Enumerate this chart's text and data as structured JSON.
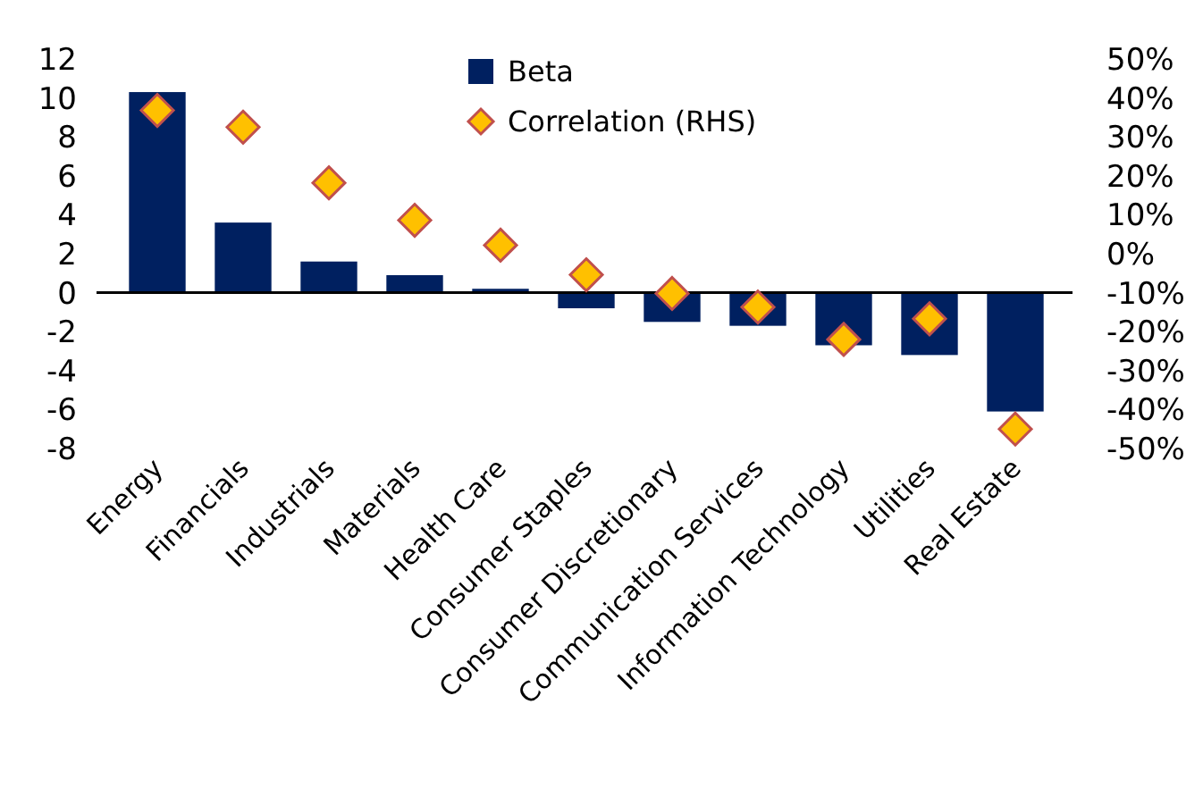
{
  "chart_data": {
    "type": "bar",
    "categories": [
      "Energy",
      "Financials",
      "Industrials",
      "Materials",
      "Health Care",
      "Consumer Staples",
      "Consumer Discretionary",
      "Communication Services",
      "Information Technology",
      "Utilities",
      "Real Estate"
    ],
    "series": [
      {
        "name": "Beta",
        "color": "#002060",
        "values": [
          10.3,
          3.6,
          1.6,
          0.9,
          0.2,
          -0.8,
          -1.5,
          -1.7,
          -2.7,
          -3.2,
          -6.1
        ]
      },
      {
        "name": "Correlation (RHS)",
        "type": "scatter",
        "axis": "y2",
        "color": "#ffc000",
        "marker": "diamond",
        "values": [
          36.8,
          32.5,
          18.2,
          8.6,
          2.2,
          -5.4,
          -10.2,
          -13.7,
          -22,
          -16.7,
          -45
        ]
      }
    ],
    "ylim": [
      -8,
      12
    ],
    "yticks": [
      -8,
      -6,
      -4,
      -2,
      0,
      2,
      4,
      6,
      8,
      10,
      12
    ],
    "y2lim": [
      -50,
      50
    ],
    "y2ticks": [
      {
        "value": -50,
        "label": "-50%"
      },
      {
        "value": -40,
        "label": "-40%"
      },
      {
        "value": -30,
        "label": "-30%"
      },
      {
        "value": -20,
        "label": "-20%"
      },
      {
        "value": -10,
        "label": "-10%"
      },
      {
        "value": 0,
        "label": "0%"
      },
      {
        "value": 10,
        "label": "10%"
      },
      {
        "value": 20,
        "label": "20%"
      },
      {
        "value": 30,
        "label": "30%"
      },
      {
        "value": 40,
        "label": "40%"
      },
      {
        "value": 50,
        "label": "50%"
      }
    ],
    "legend": "top"
  }
}
